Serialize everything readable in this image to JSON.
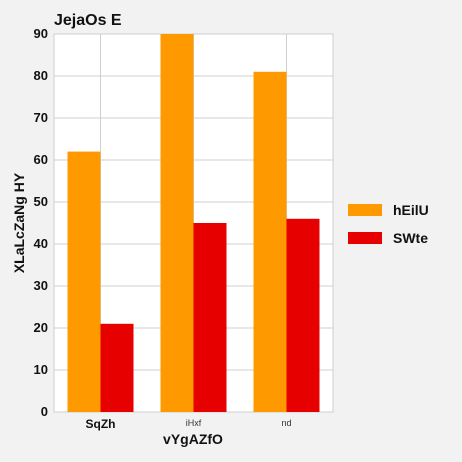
{
  "chart_data": {
    "type": "bar",
    "title": "JejaOs E",
    "xlabel": "vYgAZfO",
    "ylabel": "XLaLcZaNg HY",
    "categories": [
      "SqZh",
      "iHxf",
      "nd"
    ],
    "category_label_bold": [
      true,
      false,
      false
    ],
    "series": [
      {
        "name": "hEilU",
        "values": [
          62,
          90,
          81
        ],
        "color": "#ff9900"
      },
      {
        "name": "SWte",
        "values": [
          21,
          45,
          46
        ],
        "color": "#e60000"
      }
    ],
    "ylim": [
      0,
      90
    ],
    "yticks": [
      0,
      10,
      20,
      30,
      40,
      50,
      60,
      70,
      80,
      90
    ],
    "grid": true,
    "legend_position": "right"
  },
  "colors": {
    "background": "#f2f2f2",
    "plot_background": "#ffffff",
    "grid": "#cfcfcf"
  }
}
